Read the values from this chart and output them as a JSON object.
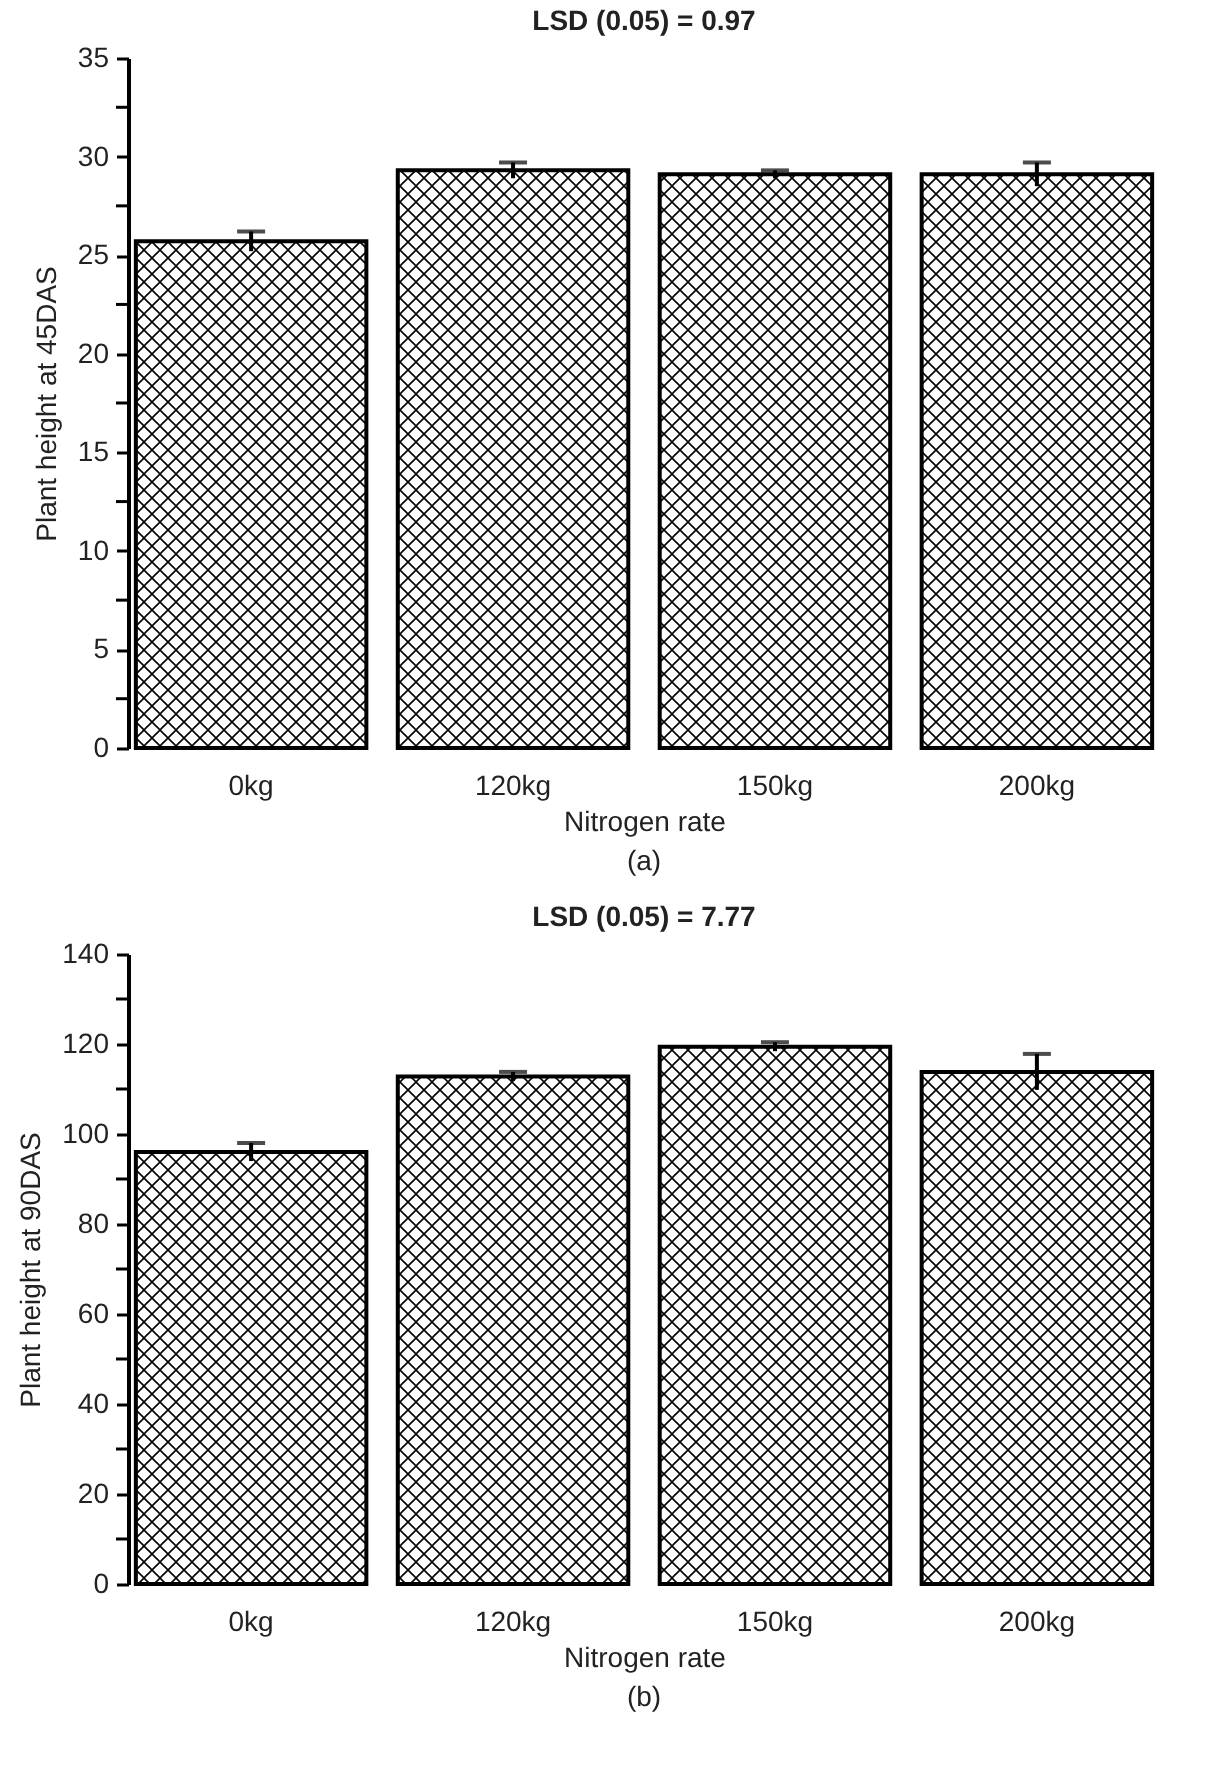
{
  "chart_data": [
    {
      "type": "bar",
      "title": "LSD (0.05) = 0.97",
      "xlabel": "Nitrogen rate",
      "ylabel": "Plant height at 45DAS",
      "annotations": [
        "(a)"
      ],
      "categories": [
        "0kg",
        "120kg",
        "150kg",
        "200kg"
      ],
      "series": [
        {
          "color": "#000000",
          "values": [
            25.7,
            29.3,
            29.1,
            29.1
          ],
          "errors": [
            0.5,
            0.4,
            0.2,
            0.6
          ]
        }
      ],
      "ylim": [
        0,
        35
      ],
      "yticks": [
        0,
        {
          "value": 2.5,
          "label": null
        },
        5,
        {
          "value": 7.5,
          "label": null
        },
        10,
        {
          "value": 12.5,
          "label": null
        },
        15,
        {
          "value": 17.5,
          "label": null
        },
        20,
        {
          "value": 22.5,
          "label": null
        },
        25,
        {
          "value": 27.5,
          "label": null
        },
        30,
        {
          "value": 32.5,
          "label": null
        },
        35
      ],
      "grid": false
    },
    {
      "type": "bar",
      "title": "LSD (0.05) = 7.77",
      "xlabel": "Nitrogen rate",
      "ylabel": "Plant height at 90DAS",
      "annotations": [
        "(b)"
      ],
      "categories": [
        "0kg",
        "120kg",
        "150kg",
        "200kg"
      ],
      "series": [
        {
          "color": "#000000",
          "values": [
            96,
            112.8,
            119.4,
            113.8
          ],
          "errors": [
            2,
            1,
            1,
            4
          ]
        }
      ],
      "ylim": [
        0,
        140
      ],
      "yticks": [
        0,
        {
          "value": 10,
          "label": null
        },
        20,
        {
          "value": 30,
          "label": null
        },
        40,
        {
          "value": 50,
          "label": null
        },
        60,
        {
          "value": 70,
          "label": null
        },
        80,
        {
          "value": 90,
          "label": null
        },
        100,
        {
          "value": 110,
          "label": null
        },
        120,
        {
          "value": 130,
          "label": null
        },
        140
      ],
      "grid": false
    }
  ]
}
